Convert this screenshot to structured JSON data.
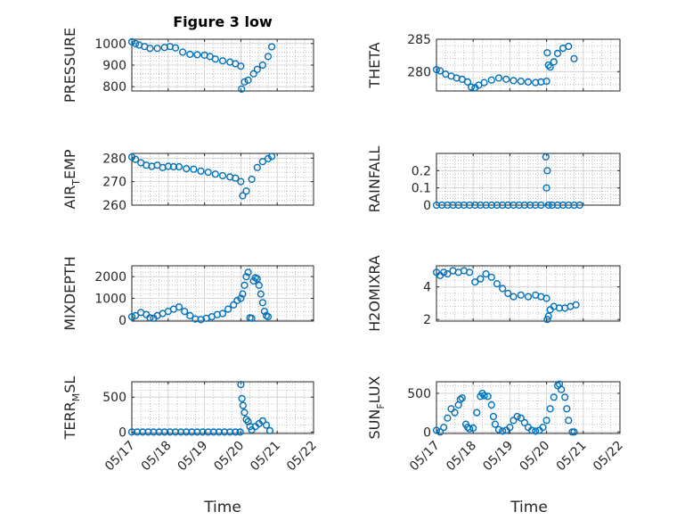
{
  "title": "Figure 3 low",
  "xlabel": "Time",
  "marker_color": "#0072bd",
  "x_ticks": [
    "05/17",
    "05/18",
    "05/19",
    "05/20",
    "05/21",
    "05/22"
  ],
  "chart_data": [
    {
      "type": "scatter",
      "ylabel": "PRESSURE",
      "ylabel_main": "PRESSURE",
      "ylabel_sub": "",
      "ylabel_tail": "",
      "ylim": [
        780,
        1020
      ],
      "yticks": [
        800,
        900,
        1000
      ],
      "yticklabels": [
        "800",
        "900",
        "1000"
      ],
      "x": [
        17.0,
        17.1,
        17.2,
        17.35,
        17.5,
        17.7,
        17.9,
        18.05,
        18.2,
        18.4,
        18.6,
        18.8,
        19.0,
        19.15,
        19.3,
        19.5,
        19.7,
        19.85,
        20.0,
        20.02,
        20.1,
        20.2,
        20.35,
        20.45,
        20.6,
        20.75,
        20.85
      ],
      "y": [
        1008,
        1000,
        993,
        986,
        978,
        978,
        982,
        986,
        980,
        960,
        950,
        948,
        946,
        940,
        928,
        920,
        914,
        906,
        895,
        789,
        822,
        830,
        860,
        880,
        900,
        940,
        985
      ]
    },
    {
      "type": "scatter",
      "ylabel": "THETA",
      "ylabel_main": "THETA",
      "ylabel_sub": "",
      "ylabel_tail": "",
      "ylim": [
        277,
        285
      ],
      "yticks": [
        280,
        285
      ],
      "yticklabels": [
        "280",
        "285"
      ],
      "x": [
        17.0,
        17.1,
        17.25,
        17.4,
        17.55,
        17.7,
        17.85,
        17.95,
        18.05,
        18.15,
        18.3,
        18.5,
        18.7,
        18.9,
        19.1,
        19.3,
        19.5,
        19.7,
        19.85,
        20.0,
        20.02,
        20.05,
        20.1,
        20.2,
        20.3,
        20.45,
        20.6,
        20.75
      ],
      "y": [
        280.3,
        280.1,
        279.6,
        279.3,
        279.0,
        278.8,
        278.4,
        277.6,
        277.5,
        277.9,
        278.3,
        278.7,
        279.0,
        278.8,
        278.6,
        278.5,
        278.4,
        278.3,
        278.4,
        278.5,
        282.9,
        281.0,
        280.7,
        281.5,
        282.8,
        283.6,
        283.9,
        282.0
      ]
    },
    {
      "type": "scatter",
      "ylabel": "AIR_TEMP",
      "ylabel_main": "AIR",
      "ylabel_sub": "T",
      "ylabel_tail": "EMP",
      "ylim": [
        260,
        282
      ],
      "yticks": [
        260,
        270,
        280
      ],
      "yticklabels": [
        "260",
        "270",
        "280"
      ],
      "x": [
        17.0,
        17.1,
        17.25,
        17.4,
        17.55,
        17.7,
        17.85,
        18.0,
        18.15,
        18.3,
        18.5,
        18.7,
        18.9,
        19.1,
        19.3,
        19.5,
        19.7,
        19.85,
        20.0,
        20.05,
        20.15,
        20.3,
        20.45,
        20.6,
        20.75,
        20.85
      ],
      "y": [
        280.5,
        279.5,
        278.0,
        277.0,
        276.5,
        277.0,
        276.0,
        276.5,
        276.3,
        276.3,
        275.5,
        275.3,
        274.5,
        274.0,
        273.2,
        272.5,
        272.0,
        271.5,
        270.0,
        264.0,
        266.0,
        271.0,
        276.0,
        278.5,
        279.8,
        280.7
      ]
    },
    {
      "type": "scatter",
      "ylabel": "RAINFALL",
      "ylabel_main": "RAINFALL",
      "ylabel_sub": "",
      "ylabel_tail": "",
      "ylim": [
        0,
        0.3
      ],
      "yticks": [
        0,
        0.1,
        0.2
      ],
      "yticklabels": [
        "0",
        "0.1",
        "0.2"
      ],
      "x": [
        17.0,
        17.15,
        17.3,
        17.45,
        17.6,
        17.75,
        17.9,
        18.05,
        18.2,
        18.35,
        18.5,
        18.65,
        18.8,
        18.95,
        19.1,
        19.25,
        19.4,
        19.55,
        19.7,
        19.85,
        19.98,
        20.0,
        20.02,
        20.05,
        20.15,
        20.3,
        20.45,
        20.6,
        20.75,
        20.9
      ],
      "y": [
        0,
        0,
        0,
        0,
        0,
        0,
        0,
        0,
        0,
        0,
        0,
        0,
        0,
        0,
        0,
        0,
        0,
        0,
        0,
        0,
        0.28,
        0.1,
        0.2,
        0,
        0,
        0,
        0,
        0,
        0,
        0
      ]
    },
    {
      "type": "scatter",
      "ylabel": "MIXDEPTH",
      "ylabel_main": "MIXDEPTH",
      "ylabel_sub": "",
      "ylabel_tail": "",
      "ylim": [
        -50,
        2500
      ],
      "yticks": [
        0,
        1000,
        2000
      ],
      "yticklabels": [
        "0",
        "1000",
        "2000"
      ],
      "x": [
        17.0,
        17.1,
        17.25,
        17.4,
        17.5,
        17.6,
        17.7,
        17.85,
        18.0,
        18.15,
        18.3,
        18.45,
        18.6,
        18.75,
        18.9,
        19.05,
        19.2,
        19.35,
        19.5,
        19.65,
        19.8,
        19.9,
        20.0,
        20.05,
        20.1,
        20.15,
        20.2,
        20.25,
        20.3,
        20.35,
        20.4,
        20.45,
        20.5,
        20.55,
        20.6,
        20.65,
        20.7,
        20.75
      ],
      "y": [
        150,
        200,
        350,
        250,
        100,
        80,
        200,
        300,
        400,
        500,
        600,
        400,
        200,
        50,
        20,
        80,
        150,
        250,
        300,
        500,
        700,
        900,
        1000,
        1200,
        1600,
        2000,
        2200,
        100,
        80,
        1800,
        1950,
        1900,
        1600,
        1200,
        800,
        400,
        200,
        150
      ]
    },
    {
      "type": "scatter",
      "ylabel": "H2OMIXRA",
      "ylabel_main": "H2OMIXRA",
      "ylabel_sub": "",
      "ylabel_tail": "",
      "ylim": [
        1.9,
        5.3
      ],
      "yticks": [
        2,
        4
      ],
      "yticklabels": [
        "2",
        "4"
      ],
      "x": [
        17.0,
        17.1,
        17.2,
        17.3,
        17.45,
        17.6,
        17.75,
        17.9,
        18.05,
        18.2,
        18.35,
        18.5,
        18.65,
        18.8,
        18.95,
        19.1,
        19.3,
        19.5,
        19.7,
        19.85,
        20.0,
        20.02,
        20.05,
        20.1,
        20.2,
        20.35,
        20.5,
        20.65,
        20.8
      ],
      "y": [
        4.9,
        4.7,
        4.9,
        4.8,
        5.0,
        4.9,
        5.0,
        4.9,
        4.3,
        4.5,
        4.8,
        4.6,
        4.2,
        3.9,
        3.6,
        3.4,
        3.5,
        3.4,
        3.5,
        3.4,
        3.3,
        2.0,
        2.2,
        2.6,
        2.8,
        2.7,
        2.7,
        2.8,
        2.9
      ]
    },
    {
      "type": "scatter",
      "ylabel": "TERR_MSL",
      "ylabel_main": "TERR",
      "ylabel_sub": "M",
      "ylabel_tail": "SL",
      "ylim": [
        -20,
        720
      ],
      "yticks": [
        0,
        500
      ],
      "yticklabels": [
        "0",
        "500"
      ],
      "x": [
        17.0,
        17.15,
        17.3,
        17.45,
        17.6,
        17.75,
        17.9,
        18.05,
        18.2,
        18.35,
        18.5,
        18.65,
        18.8,
        18.95,
        19.1,
        19.25,
        19.4,
        19.55,
        19.7,
        19.85,
        19.98,
        20.0,
        20.03,
        20.06,
        20.1,
        20.15,
        20.2,
        20.25,
        20.3,
        20.4,
        20.5,
        20.6,
        20.7,
        20.8
      ],
      "y": [
        0,
        0,
        0,
        0,
        0,
        0,
        0,
        0,
        0,
        0,
        0,
        0,
        0,
        0,
        0,
        0,
        0,
        0,
        0,
        0,
        0,
        680,
        480,
        380,
        280,
        180,
        150,
        80,
        30,
        80,
        120,
        160,
        100,
        20
      ]
    },
    {
      "type": "scatter",
      "ylabel": "SUN_FLUX",
      "ylabel_main": "SUN",
      "ylabel_sub": "F",
      "ylabel_tail": "LUX",
      "ylim": [
        -20,
        650
      ],
      "yticks": [
        0,
        500
      ],
      "yticklabels": [
        "0",
        "500"
      ],
      "x": [
        17.0,
        17.1,
        17.2,
        17.3,
        17.4,
        17.5,
        17.6,
        17.65,
        17.7,
        17.8,
        17.85,
        17.9,
        18.0,
        18.1,
        18.2,
        18.25,
        18.3,
        18.4,
        18.5,
        18.55,
        18.6,
        18.7,
        18.8,
        18.9,
        19.0,
        19.1,
        19.2,
        19.3,
        19.4,
        19.5,
        19.6,
        19.7,
        19.8,
        19.9,
        20.0,
        20.1,
        20.2,
        20.3,
        20.35,
        20.4,
        20.5,
        20.55,
        20.6,
        20.7,
        20.75
      ],
      "y": [
        20,
        0,
        60,
        180,
        300,
        250,
        350,
        420,
        440,
        100,
        60,
        40,
        50,
        250,
        460,
        500,
        470,
        460,
        350,
        200,
        100,
        30,
        10,
        20,
        60,
        150,
        200,
        180,
        120,
        60,
        20,
        10,
        20,
        60,
        150,
        300,
        450,
        600,
        620,
        550,
        450,
        300,
        150,
        0,
        0
      ]
    }
  ]
}
